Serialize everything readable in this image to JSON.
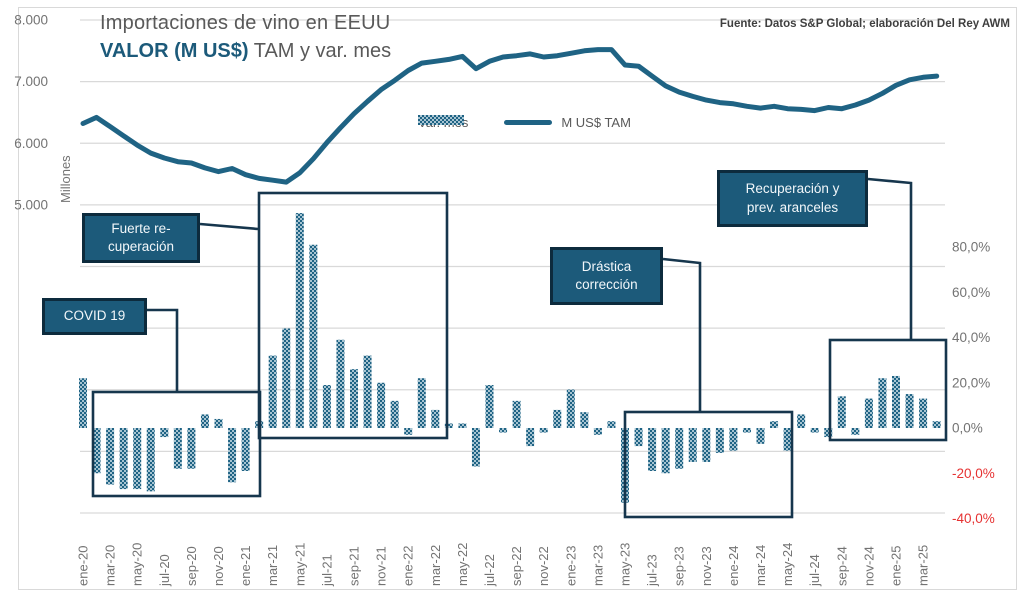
{
  "title": {
    "line1": "Importaciones de vino en EEUU",
    "line2_bold": "VALOR (M US$)",
    "line2_rest": " TAM y var. mes"
  },
  "source": "Fuente: Datos S&P Global; elaboración Del Rey AWM",
  "legend": {
    "var_mes": "Var. mes",
    "tam": "M US$ TAM"
  },
  "axis_left": {
    "unit_label": "Millones",
    "ticks": [
      {
        "label": "8.000",
        "value": 8000
      },
      {
        "label": "7.000",
        "value": 7000
      },
      {
        "label": "6.000",
        "value": 6000
      },
      {
        "label": "5.000",
        "value": 5000
      }
    ]
  },
  "axis_right": {
    "ticks": [
      {
        "label": "80,0%",
        "value": 80,
        "negative": false
      },
      {
        "label": "60,0%",
        "value": 60,
        "negative": false
      },
      {
        "label": "40,0%",
        "value": 40,
        "negative": false
      },
      {
        "label": "20,0%",
        "value": 20,
        "negative": false
      },
      {
        "label": "0,0%",
        "value": 0,
        "negative": false
      },
      {
        "label": "-20,0%",
        "value": -20,
        "negative": true
      },
      {
        "label": "-40,0%",
        "value": -40,
        "negative": true
      }
    ]
  },
  "annotations": {
    "covid": {
      "lines": [
        "COVID 19"
      ]
    },
    "fuerte": {
      "lines": [
        "Fuerte re-",
        "cuperación"
      ]
    },
    "drastica": {
      "lines": [
        "Drástica",
        "corrección"
      ]
    },
    "recuperacion": {
      "lines": [
        "Recuperación  y",
        "prev. aranceles"
      ]
    }
  },
  "colors": {
    "line": "#1f6384",
    "pattern_dark": "#1f6384",
    "pattern_light": "#a7c4d2",
    "box_fill": "#1c5a7a",
    "box_border": "#0d2b3d",
    "rect_border": "#16364d",
    "grid": "#d9d9d9",
    "tick_gray": "#737373",
    "tick_red": "#e63232",
    "frame": "#d9d9d9"
  },
  "chart_data": {
    "type": "bar+line",
    "x": [
      "ene-20",
      "feb-20",
      "mar-20",
      "abr-20",
      "may-20",
      "jun-20",
      "jul-20",
      "ago-20",
      "sep-20",
      "oct-20",
      "nov-20",
      "dic-20",
      "ene-21",
      "feb-21",
      "mar-21",
      "abr-21",
      "may-21",
      "jun-21",
      "jul-21",
      "ago-21",
      "sep-21",
      "oct-21",
      "nov-21",
      "dic-21",
      "ene-22",
      "feb-22",
      "mar-22",
      "abr-22",
      "may-22",
      "jun-22",
      "jul-22",
      "ago-22",
      "sep-22",
      "oct-22",
      "nov-22",
      "dic-22",
      "ene-23",
      "feb-23",
      "mar-23",
      "abr-23",
      "may-23",
      "jun-23",
      "jul-23",
      "ago-23",
      "sep-23",
      "oct-23",
      "nov-23",
      "dic-23",
      "ene-24",
      "feb-24",
      "mar-24",
      "abr-24",
      "may-24",
      "jun-24",
      "jul-24",
      "ago-24",
      "sep-24",
      "oct-24",
      "nov-24",
      "dic-24",
      "ene-25",
      "feb-25",
      "mar-25",
      "abr-25"
    ],
    "x_tick_step": 2,
    "series": [
      {
        "name": "Var. mes",
        "type": "bar",
        "axis": "right",
        "unit": "%",
        "values": [
          22,
          -20,
          -25,
          -27,
          -27,
          -28,
          -4,
          -18,
          -18,
          6,
          4,
          -24,
          -19,
          3,
          32,
          44,
          95,
          81,
          19,
          39,
          26,
          32,
          20,
          12,
          -3,
          22,
          8,
          2,
          2,
          -17,
          19,
          -2,
          12,
          -8,
          -2,
          8,
          17,
          7,
          -3,
          3,
          -33,
          -8,
          -19,
          -20,
          -18,
          -15,
          -15,
          -11,
          -10,
          -2,
          -7,
          3,
          -10,
          6,
          -2,
          -4,
          14,
          -3,
          13,
          22,
          23,
          15,
          13,
          3
        ]
      },
      {
        "name": "M US$ TAM",
        "type": "line",
        "axis": "left",
        "unit": "M US$",
        "values": [
          6320,
          6420,
          6270,
          6120,
          5970,
          5840,
          5760,
          5700,
          5680,
          5600,
          5540,
          5590,
          5490,
          5430,
          5400,
          5370,
          5520,
          5750,
          6010,
          6250,
          6480,
          6680,
          6870,
          7020,
          7180,
          7300,
          7330,
          7360,
          7410,
          7210,
          7330,
          7400,
          7420,
          7450,
          7400,
          7420,
          7460,
          7500,
          7520,
          7520,
          7270,
          7250,
          7090,
          6930,
          6830,
          6760,
          6700,
          6660,
          6640,
          6600,
          6570,
          6600,
          6560,
          6550,
          6530,
          6580,
          6560,
          6620,
          6700,
          6810,
          6940,
          7030,
          7070,
          7090
        ]
      }
    ],
    "left_axis_range": [
      0,
      8000
    ],
    "right_axis_range": [
      -40,
      80
    ],
    "grid": true,
    "legend_position": "top-center"
  }
}
